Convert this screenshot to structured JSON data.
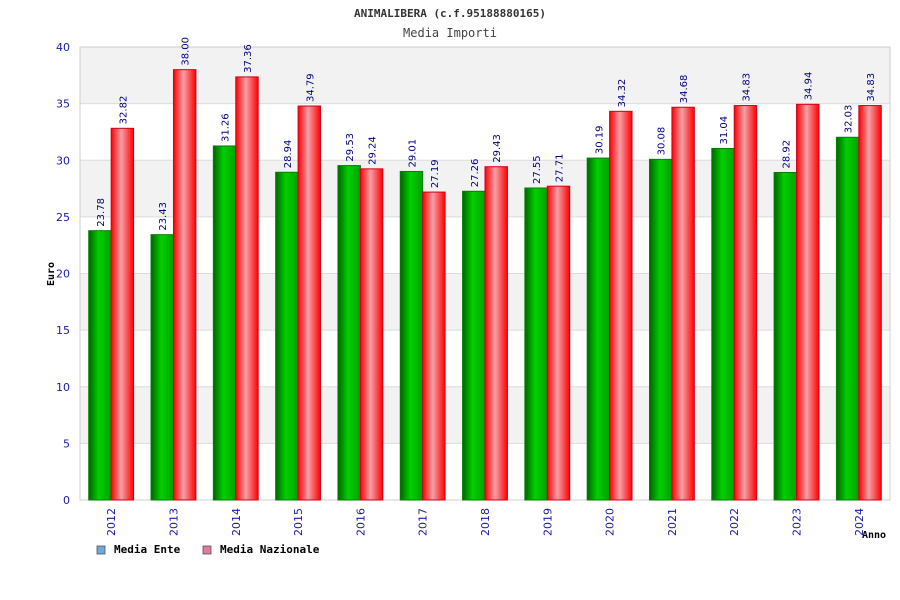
{
  "chart_data": {
    "type": "bar",
    "title": "ANIMALIBERA (c.f.95188880165)",
    "subtitle": "Media Importi",
    "xlabel": "Anno",
    "ylabel": "Euro",
    "ylim": [
      0,
      40
    ],
    "yticks": [
      "0",
      "5",
      "10",
      "15",
      "20",
      "25",
      "30",
      "35",
      "40"
    ],
    "grid": true,
    "legend_position": "bottom-left",
    "categories": [
      "2012",
      "2013",
      "2014",
      "2015",
      "2016",
      "2017",
      "2018",
      "2019",
      "2020",
      "2021",
      "2022",
      "2023",
      "2024"
    ],
    "series": [
      {
        "name": "Media Ente",
        "legend_color": "#6fa8dc",
        "bar_color": "#00b400",
        "values": [
          23.78,
          23.43,
          31.26,
          28.94,
          29.53,
          29.01,
          27.26,
          27.55,
          30.19,
          30.08,
          31.04,
          28.92,
          32.03
        ],
        "labels": [
          "23.78",
          "23.43",
          "31.26",
          "28.94",
          "29.53",
          "29.01",
          "27.26",
          "27.55",
          "30.19",
          "30.08",
          "31.04",
          "28.92",
          "32.03"
        ]
      },
      {
        "name": "Media Nazionale",
        "legend_color": "#e07aa0",
        "bar_color": "#e8001c",
        "values": [
          32.82,
          38.0,
          37.36,
          34.79,
          29.24,
          27.19,
          29.43,
          27.71,
          34.32,
          34.68,
          34.83,
          34.94,
          34.83
        ],
        "labels": [
          "32.82",
          "38.00",
          "37.36",
          "34.79",
          "29.24",
          "27.19",
          "29.43",
          "27.71",
          "34.32",
          "34.68",
          "34.83",
          "34.94",
          "34.83"
        ]
      }
    ]
  }
}
